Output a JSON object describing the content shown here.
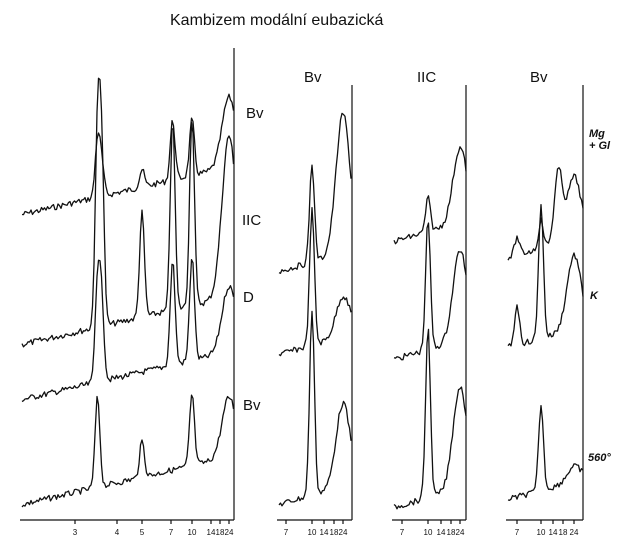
{
  "chart_data": [
    {
      "type": "line",
      "title": "Kambizem modální eubazická",
      "x_tick_labels": [
        "3",
        "4",
        "5",
        "7",
        "10",
        "14",
        "18",
        "24"
      ],
      "series": [
        {
          "name": "Bv",
          "peaks": [
            {
              "x": 3.5,
              "y": 0.8
            },
            {
              "x": 3.6,
              "y": 0.45
            },
            {
              "x": 5,
              "y": 0.25
            },
            {
              "x": 7.2,
              "y": 0.85
            },
            {
              "x": 10,
              "y": 0.8
            },
            {
              "x": 24,
              "y": 1.0
            }
          ]
        },
        {
          "name": "IIC",
          "peaks": [
            {
              "x": 3.5,
              "y": 1.0
            },
            {
              "x": 3.6,
              "y": 0.9
            },
            {
              "x": 5,
              "y": 0.55
            },
            {
              "x": 7.2,
              "y": 1.0
            },
            {
              "x": 10,
              "y": 1.0
            },
            {
              "x": 24,
              "y": 0.85
            }
          ]
        },
        {
          "name": "D",
          "peaks": [
            {
              "x": 3.5,
              "y": 0.9
            },
            {
              "x": 3.6,
              "y": 0.7
            },
            {
              "x": 7.2,
              "y": 0.95
            },
            {
              "x": 10,
              "y": 0.95
            },
            {
              "x": 24,
              "y": 0.6
            }
          ]
        },
        {
          "name": "Bv",
          "peaks": [
            {
              "x": 3.5,
              "y": 0.75
            },
            {
              "x": 5,
              "y": 0.3
            },
            {
              "x": 10,
              "y": 0.6
            },
            {
              "x": 24,
              "y": 0.5
            }
          ]
        }
      ]
    },
    {
      "type": "line",
      "title": "Bv",
      "x_tick_labels": [
        "7",
        "10",
        "14",
        "18",
        "24"
      ],
      "series": [
        {
          "name": "",
          "peaks": [
            {
              "x": 10,
              "y": 0.7
            },
            {
              "x": 24,
              "y": 1.0
            }
          ]
        },
        {
          "name": "",
          "peaks": [
            {
              "x": 10,
              "y": 1.0
            },
            {
              "x": 24,
              "y": 0.3
            }
          ]
        },
        {
          "name": "",
          "peaks": [
            {
              "x": 10,
              "y": 1.0
            },
            {
              "x": 24,
              "y": 0.45
            }
          ]
        }
      ]
    },
    {
      "type": "line",
      "title": "IIC",
      "x_tick_labels": [
        "7",
        "10",
        "14",
        "18",
        "24"
      ],
      "series": [
        {
          "name": "",
          "peaks": [
            {
              "x": 10,
              "y": 0.45
            },
            {
              "x": 24,
              "y": 1.0
            }
          ]
        },
        {
          "name": "",
          "peaks": [
            {
              "x": 10,
              "y": 1.0
            },
            {
              "x": 24,
              "y": 0.7
            }
          ]
        },
        {
          "name": "",
          "peaks": [
            {
              "x": 10,
              "y": 1.0
            },
            {
              "x": 24,
              "y": 0.6
            }
          ]
        }
      ]
    },
    {
      "type": "line",
      "title": "Bv",
      "x_tick_labels": [
        "7",
        "10",
        "14",
        "18",
        "24"
      ],
      "series": [
        {
          "name": "Mg + Gl",
          "peaks": [
            {
              "x": 7,
              "y": 0.25
            },
            {
              "x": 10,
              "y": 0.4
            },
            {
              "x": 16,
              "y": 1.0
            },
            {
              "x": 24,
              "y": 0.9
            }
          ]
        },
        {
          "name": "K",
          "peaks": [
            {
              "x": 7,
              "y": 0.3
            },
            {
              "x": 10,
              "y": 1.0
            },
            {
              "x": 24,
              "y": 0.55
            }
          ]
        },
        {
          "name": "560°",
          "peaks": [
            {
              "x": 10,
              "y": 0.85
            },
            {
              "x": 24,
              "y": 0.15
            }
          ]
        }
      ]
    }
  ]
}
